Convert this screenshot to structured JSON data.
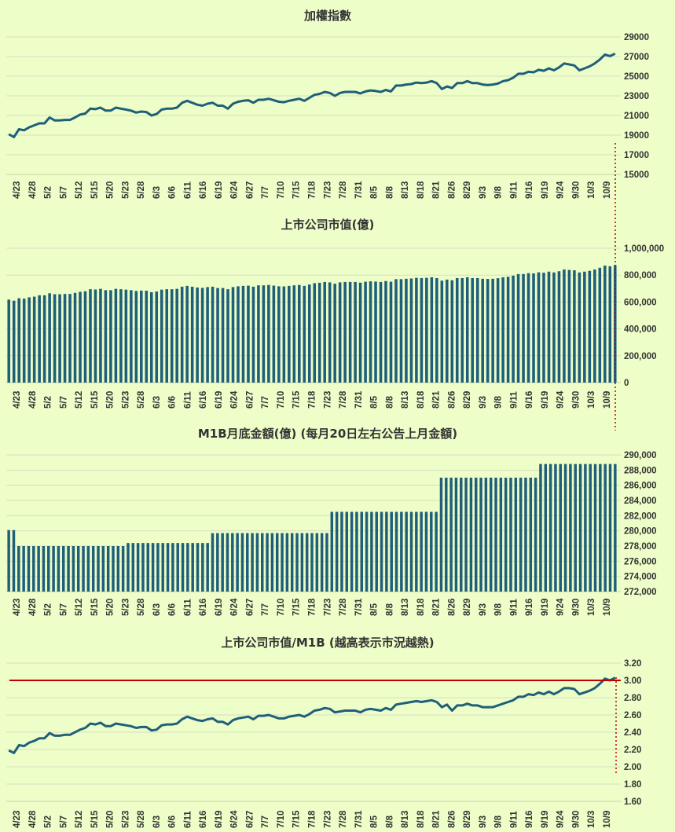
{
  "colors": {
    "background": "#eefec8",
    "series": "#1f5f7a",
    "threshold": "#c00000",
    "dotted": "#c00000"
  },
  "x_labels": [
    "4/23",
    "4/28",
    "5/2",
    "5/7",
    "5/12",
    "5/15",
    "5/20",
    "5/23",
    "5/28",
    "6/3",
    "6/6",
    "6/11",
    "6/16",
    "6/19",
    "6/24",
    "6/27",
    "7/7",
    "7/10",
    "7/15",
    "7/18",
    "7/23",
    "7/28",
    "7/31",
    "8/5",
    "8/8",
    "8/13",
    "8/18",
    "8/21",
    "8/26",
    "8/29",
    "9/3",
    "9/8",
    "9/11",
    "9/16",
    "9/19",
    "9/24",
    "9/30",
    "10/3",
    "10/9"
  ],
  "chart_data": [
    {
      "type": "line",
      "title": "加權指數",
      "ylim": [
        15000,
        29000
      ],
      "y_ticks": [
        "29000",
        "27000",
        "25000",
        "23000",
        "21000",
        "19000",
        "17000",
        "15000"
      ],
      "series": [
        {
          "name": "加權指數",
          "values": [
            19100,
            18800,
            19600,
            19500,
            19800,
            20000,
            20200,
            20200,
            20800,
            20500,
            20500,
            20550,
            20550,
            20800,
            21100,
            21200,
            21700,
            21650,
            21800,
            21500,
            21500,
            21800,
            21700,
            21600,
            21500,
            21300,
            21400,
            21350,
            21000,
            21150,
            21600,
            21700,
            21700,
            21800,
            22300,
            22500,
            22300,
            22100,
            22000,
            22200,
            22300,
            22000,
            22000,
            21700,
            22200,
            22400,
            22500,
            22550,
            22300,
            22600,
            22600,
            22700,
            22550,
            22400,
            22350,
            22500,
            22600,
            22700,
            22500,
            22800,
            23100,
            23200,
            23400,
            23300,
            23000,
            23300,
            23400,
            23400,
            23400,
            23250,
            23450,
            23550,
            23500,
            23400,
            23600,
            23450,
            24050,
            24050,
            24150,
            24200,
            24350,
            24300,
            24350,
            24500,
            24300,
            23700,
            23950,
            23800,
            24300,
            24300,
            24500,
            24300,
            24300,
            24150,
            24100,
            24150,
            24250,
            24500,
            24600,
            24850,
            25250,
            25250,
            25450,
            25400,
            25650,
            25550,
            25800,
            25600,
            25900,
            26300,
            26200,
            26100,
            25600,
            25800,
            26000,
            26300,
            26700,
            27200,
            27050,
            27300
          ]
        }
      ]
    },
    {
      "type": "bar",
      "title": "上市公司市值(億)",
      "ylim": [
        0,
        1000000
      ],
      "y_ticks": [
        "1,000,000",
        "800,000",
        "600,000",
        "400,000",
        "200,000",
        "0"
      ],
      "series": [
        {
          "name": "上市公司市值",
          "values": [
            618000,
            610000,
            628000,
            625000,
            635000,
            640000,
            650000,
            650000,
            665000,
            658000,
            658000,
            660000,
            660000,
            668000,
            676000,
            680000,
            695000,
            693000,
            698000,
            688000,
            688000,
            698000,
            695000,
            692000,
            688000,
            682000,
            685000,
            684000,
            673000,
            678000,
            692000,
            695000,
            695000,
            698000,
            714000,
            720000,
            714000,
            708000,
            705000,
            711000,
            714000,
            704000,
            704000,
            695000,
            711000,
            717000,
            720000,
            722000,
            714000,
            724000,
            724000,
            727000,
            722000,
            717000,
            716000,
            720000,
            724000,
            727000,
            720000,
            730000,
            740000,
            743000,
            749000,
            746000,
            736000,
            746000,
            749000,
            749000,
            749000,
            744000,
            751000,
            754000,
            752000,
            749000,
            756000,
            751000,
            770000,
            770000,
            773000,
            775000,
            780000,
            778000,
            780000,
            784000,
            778000,
            759000,
            767000,
            762000,
            778000,
            778000,
            784000,
            778000,
            778000,
            773000,
            772000,
            773000,
            777000,
            784000,
            788000,
            796000,
            808000,
            808000,
            815000,
            813000,
            821000,
            818000,
            826000,
            820000,
            829000,
            842000,
            839000,
            836000,
            820000,
            826000,
            832000,
            842000,
            855000,
            871000,
            866000,
            874000
          ]
        }
      ]
    },
    {
      "type": "bar",
      "title": "M1B月底金額(億) (每月20日左右公告上月金額)",
      "ylim": [
        272000,
        290000
      ],
      "y_ticks": [
        "290,000",
        "288,000",
        "286,000",
        "284,000",
        "282,000",
        "280,000",
        "278,000",
        "276,000",
        "274,000",
        "272,000"
      ],
      "series": [
        {
          "name": "M1B",
          "values": [
            280100,
            280100,
            278000,
            278000,
            278000,
            278000,
            278000,
            278000,
            278000,
            278000,
            278000,
            278000,
            278000,
            278000,
            278000,
            278000,
            278000,
            278000,
            278000,
            278000,
            278000,
            278000,
            278000,
            278000,
            278400,
            278400,
            278400,
            278400,
            278400,
            278400,
            278400,
            278400,
            278400,
            278400,
            278400,
            278400,
            278400,
            278400,
            278400,
            278400,
            278400,
            279700,
            279700,
            279700,
            279700,
            279700,
            279700,
            279700,
            279700,
            279700,
            279700,
            279700,
            279700,
            279700,
            279700,
            279700,
            279700,
            279700,
            279700,
            279700,
            279700,
            279700,
            279700,
            279700,
            279700,
            282500,
            282500,
            282500,
            282500,
            282500,
            282500,
            282500,
            282500,
            282500,
            282500,
            282500,
            282500,
            282500,
            282500,
            282500,
            282500,
            282500,
            282500,
            282500,
            282500,
            282500,
            282500,
            287000,
            287000,
            287000,
            287000,
            287000,
            287000,
            287000,
            287000,
            287000,
            287000,
            287000,
            287000,
            287000,
            287000,
            287000,
            287000,
            287000,
            287000,
            287000,
            287000,
            288800,
            288800,
            288800,
            288800,
            288800,
            288800,
            288800,
            288800,
            288800,
            288800,
            288800,
            288800,
            288800,
            288800,
            288800,
            288800
          ]
        }
      ]
    },
    {
      "type": "line",
      "title": "上市公司市值/M1B (越高表示市況越熱)",
      "ylim": [
        1.6,
        3.2
      ],
      "y_ticks": [
        "3.20",
        "3.00",
        "2.80",
        "2.60",
        "2.40",
        "2.20",
        "2.00",
        "1.80",
        "1.60"
      ],
      "reference_line": 3.0,
      "series": [
        {
          "name": "上市公司市值/M1B",
          "values": [
            2.19,
            2.16,
            2.25,
            2.24,
            2.28,
            2.3,
            2.33,
            2.33,
            2.39,
            2.36,
            2.36,
            2.37,
            2.37,
            2.4,
            2.43,
            2.45,
            2.5,
            2.49,
            2.51,
            2.47,
            2.47,
            2.5,
            2.49,
            2.48,
            2.47,
            2.45,
            2.46,
            2.46,
            2.42,
            2.43,
            2.48,
            2.49,
            2.49,
            2.5,
            2.55,
            2.58,
            2.56,
            2.54,
            2.53,
            2.55,
            2.56,
            2.52,
            2.52,
            2.49,
            2.54,
            2.56,
            2.57,
            2.58,
            2.55,
            2.59,
            2.59,
            2.6,
            2.58,
            2.56,
            2.56,
            2.58,
            2.59,
            2.6,
            2.58,
            2.61,
            2.65,
            2.66,
            2.68,
            2.67,
            2.63,
            2.64,
            2.65,
            2.65,
            2.65,
            2.63,
            2.66,
            2.67,
            2.66,
            2.65,
            2.68,
            2.66,
            2.72,
            2.73,
            2.74,
            2.75,
            2.76,
            2.75,
            2.76,
            2.77,
            2.75,
            2.69,
            2.72,
            2.65,
            2.71,
            2.71,
            2.73,
            2.71,
            2.71,
            2.69,
            2.69,
            2.69,
            2.71,
            2.73,
            2.75,
            2.77,
            2.81,
            2.81,
            2.84,
            2.83,
            2.86,
            2.84,
            2.87,
            2.84,
            2.87,
            2.91,
            2.91,
            2.9,
            2.84,
            2.86,
            2.88,
            2.91,
            2.96,
            3.02,
            3.0,
            3.03
          ]
        }
      ]
    }
  ]
}
